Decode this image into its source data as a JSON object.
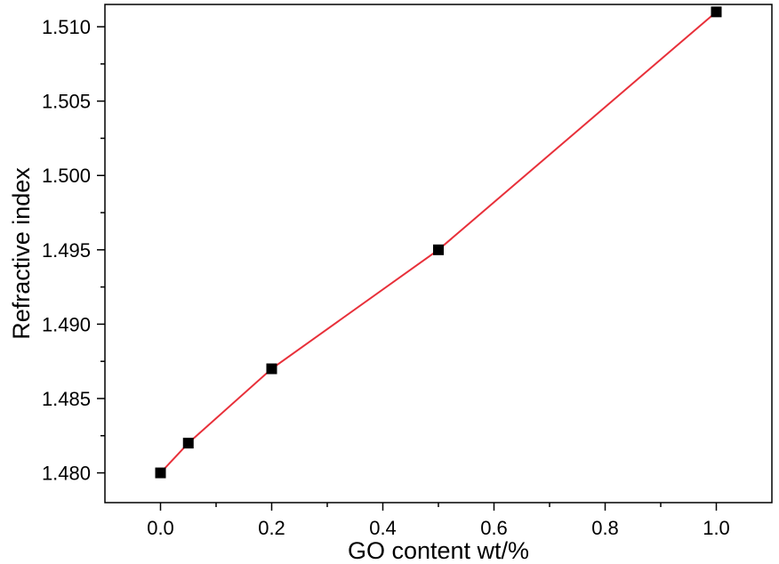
{
  "chart_data": {
    "type": "line",
    "xlabel": "GO content wt/%",
    "ylabel": "Refractive index",
    "xlim": [
      -0.1,
      1.1
    ],
    "ylim": [
      1.478,
      1.5115
    ],
    "x_ticks": [
      "0.0",
      "0.2",
      "0.4",
      "0.6",
      "0.8",
      "1.0"
    ],
    "y_ticks": [
      "1.480",
      "1.485",
      "1.490",
      "1.495",
      "1.500",
      "1.505",
      "1.510"
    ],
    "x_tick_values": [
      0.0,
      0.2,
      0.4,
      0.6,
      0.8,
      1.0
    ],
    "y_tick_values": [
      1.48,
      1.485,
      1.49,
      1.495,
      1.5,
      1.505,
      1.51
    ],
    "x_minor_step": 0.1,
    "y_minor_step": 0.0025,
    "grid": false,
    "series": [
      {
        "x": [
          0.0,
          0.05,
          0.2,
          0.5,
          1.0
        ],
        "y": [
          1.48,
          1.482,
          1.487,
          1.495,
          1.511
        ],
        "line_color": "#e8303a",
        "marker": "square",
        "marker_color": "#000000"
      }
    ]
  }
}
